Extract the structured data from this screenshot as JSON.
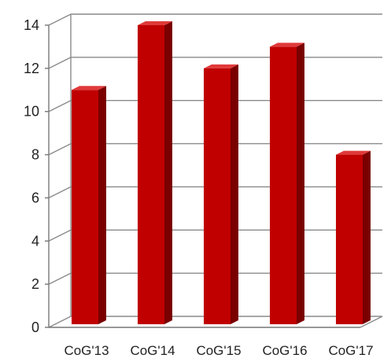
{
  "chart_data": {
    "type": "bar",
    "categories": [
      "CoG'13",
      "CoG'14",
      "CoG'15",
      "CoG'16",
      "CoG'17"
    ],
    "values": [
      11,
      14,
      12,
      13,
      8
    ],
    "ylim": [
      0,
      14
    ],
    "yticks": [
      "0",
      "2",
      "4",
      "6",
      "8",
      "10",
      "12",
      "14"
    ],
    "grid": true,
    "three_d": true,
    "colors": {
      "bar_front": "#c00000",
      "bar_side": "#7a0000",
      "bar_top": "#e03a3a",
      "grid": "#8a8a8a",
      "axis": "#777777"
    }
  }
}
